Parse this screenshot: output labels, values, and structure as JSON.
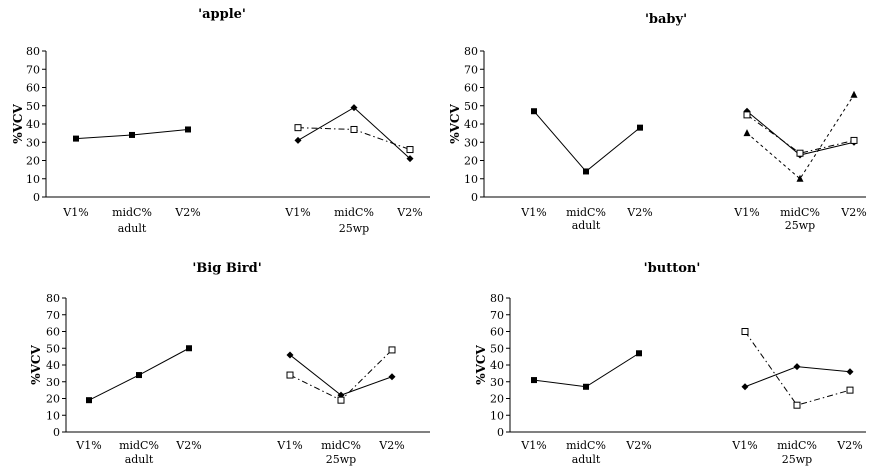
{
  "chart_data": [
    {
      "type": "line",
      "title": "'apple'",
      "ylabel": "%VCV",
      "ylim": [
        0,
        80
      ],
      "yticks": [
        0,
        10,
        20,
        30,
        40,
        50,
        60,
        70,
        80
      ],
      "groups": [
        {
          "label": "adult",
          "categories": [
            "V1%",
            "midC%",
            "V2%"
          ],
          "series": [
            {
              "marker": "filled-square",
              "style": "solid",
              "values": [
                32,
                34,
                37
              ]
            }
          ]
        },
        {
          "label": "25wp",
          "categories": [
            "V1%",
            "midC%",
            "V2%"
          ],
          "series": [
            {
              "marker": "filled-diamond",
              "style": "solid",
              "values": [
                31,
                49,
                21
              ]
            },
            {
              "marker": "open-square",
              "style": "dash-dot",
              "values": [
                38,
                37,
                26
              ]
            }
          ]
        }
      ]
    },
    {
      "type": "line",
      "title": "'baby'",
      "ylabel": "%VCV",
      "ylim": [
        0,
        80
      ],
      "yticks": [
        0,
        10,
        20,
        30,
        40,
        50,
        60,
        70,
        80
      ],
      "groups": [
        {
          "label": "adult",
          "categories": [
            "V1%",
            "midC%",
            "V2%"
          ],
          "series": [
            {
              "marker": "filled-square",
              "style": "solid",
              "values": [
                47,
                14,
                38
              ]
            }
          ]
        },
        {
          "label": "25wp",
          "categories": [
            "V1%",
            "midC%",
            "V2%"
          ],
          "series": [
            {
              "marker": "filled-diamond",
              "style": "solid",
              "values": [
                47,
                23,
                30
              ]
            },
            {
              "marker": "open-square",
              "style": "dash-dot",
              "values": [
                45,
                24,
                31
              ]
            },
            {
              "marker": "filled-triangle",
              "style": "dotted",
              "values": [
                35,
                10,
                56
              ]
            }
          ]
        }
      ]
    },
    {
      "type": "line",
      "title": "'Big Bird'",
      "ylabel": "%VCV",
      "ylim": [
        0,
        80
      ],
      "yticks": [
        0,
        10,
        20,
        30,
        40,
        50,
        60,
        70,
        80
      ],
      "groups": [
        {
          "label": "adult",
          "categories": [
            "V1%",
            "midC%",
            "V2%"
          ],
          "series": [
            {
              "marker": "filled-square",
              "style": "solid",
              "values": [
                19,
                34,
                50
              ]
            }
          ]
        },
        {
          "label": "25wp",
          "categories": [
            "V1%",
            "midC%",
            "V2%"
          ],
          "series": [
            {
              "marker": "filled-diamond",
              "style": "solid",
              "values": [
                46,
                22,
                33
              ]
            },
            {
              "marker": "open-square",
              "style": "dash-dot",
              "values": [
                34,
                19,
                49
              ]
            }
          ]
        }
      ]
    },
    {
      "type": "line",
      "title": "'button'",
      "ylabel": "%VCV",
      "ylim": [
        0,
        80
      ],
      "yticks": [
        0,
        10,
        20,
        30,
        40,
        50,
        60,
        70,
        80
      ],
      "groups": [
        {
          "label": "adult",
          "categories": [
            "V1%",
            "midC%",
            "V2%"
          ],
          "series": [
            {
              "marker": "filled-square",
              "style": "solid",
              "values": [
                31,
                27,
                47
              ]
            }
          ]
        },
        {
          "label": "25wp",
          "categories": [
            "V1%",
            "midC%",
            "V2%"
          ],
          "series": [
            {
              "marker": "filled-diamond",
              "style": "solid",
              "values": [
                27,
                39,
                36
              ]
            },
            {
              "marker": "open-square",
              "style": "dash-dot",
              "values": [
                60,
                16,
                25
              ]
            }
          ]
        }
      ]
    }
  ]
}
